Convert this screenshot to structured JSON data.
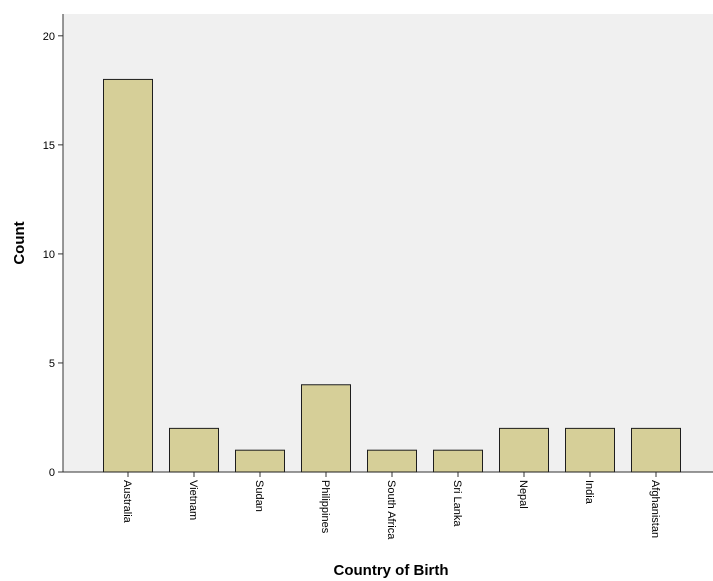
{
  "chart_data": {
    "type": "bar",
    "title": "",
    "xlabel": "Country of Birth",
    "ylabel": "Count",
    "categories": [
      "Australia",
      "Vietnam",
      "Sudan",
      "Philippines",
      "South Africa",
      "Sri Lanka",
      "Nepal",
      "India",
      "Afghanistan"
    ],
    "values": [
      18,
      2,
      1,
      4,
      1,
      1,
      2,
      2,
      2
    ],
    "ylim": [
      0,
      21
    ],
    "yticks": [
      0,
      5,
      10,
      15,
      20
    ],
    "grid": false,
    "legend": "none",
    "colors": {
      "plot_background": "#f0f0f0",
      "bar_fill": "#d6cf98",
      "bar_stroke": "#1e1e1e",
      "axis": "#333333"
    }
  }
}
